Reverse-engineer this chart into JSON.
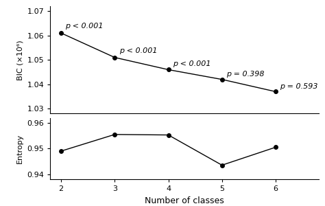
{
  "x": [
    2,
    3,
    4,
    5,
    6
  ],
  "bic_values": [
    1.061,
    1.051,
    1.046,
    1.042,
    1.037
  ],
  "entropy_values": [
    0.949,
    0.9555,
    0.9553,
    0.9435,
    0.9505
  ],
  "bic_annotations": [
    {
      "label": "p < 0.001"
    },
    {
      "label": "p < 0.001"
    },
    {
      "label": "p < 0.001"
    },
    {
      "label": "p = 0.398"
    },
    {
      "label": "p = 0.593"
    }
  ],
  "bic_ylim": [
    1.028,
    1.072
  ],
  "bic_yticks": [
    1.03,
    1.04,
    1.05,
    1.06,
    1.07
  ],
  "entropy_ylim": [
    0.938,
    0.962
  ],
  "entropy_yticks": [
    0.94,
    0.95,
    0.96
  ],
  "xlabel": "Number of classes",
  "bic_ylabel": "BIC (×10⁶)",
  "entropy_ylabel": "Entropy",
  "line_color": "#000000",
  "marker": "o",
  "markersize": 4,
  "fontsize": 8,
  "annot_fontsize": 8
}
